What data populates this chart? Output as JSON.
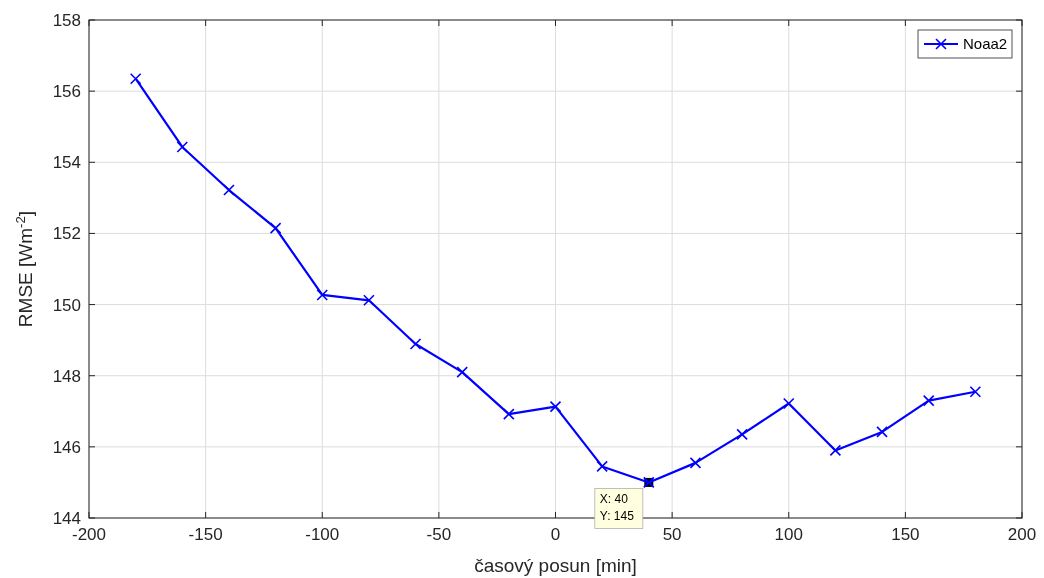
{
  "chart_data": {
    "type": "line",
    "xlabel": "časový posun [min]",
    "ylabel": "RMSE [Wm$^{-2}$]",
    "x": [
      -180,
      -160,
      -140,
      -120,
      -100,
      -80,
      -60,
      -40,
      -20,
      0,
      20,
      40,
      60,
      80,
      100,
      120,
      140,
      160,
      180
    ],
    "series": [
      {
        "name": "Noaa2",
        "color": "#0000ff",
        "values": [
          156.35,
          154.43,
          153.22,
          152.15,
          150.27,
          150.12,
          148.89,
          148.1,
          146.92,
          147.13,
          145.45,
          145.0,
          145.55,
          146.35,
          147.22,
          145.9,
          146.42,
          147.3,
          147.55
        ]
      }
    ],
    "xlim": [
      -200,
      200
    ],
    "xticks": [
      -200,
      -150,
      -100,
      -50,
      0,
      50,
      100,
      150,
      200
    ],
    "ylim": [
      144,
      158
    ],
    "yticks": [
      144,
      146,
      148,
      150,
      152,
      154,
      156,
      158
    ],
    "grid": true,
    "legend": "top right",
    "marker": "cross",
    "line_style": "solid",
    "annotations": [
      {
        "text": "X: 40\nY: 145",
        "x": 40,
        "y": 145
      }
    ]
  }
}
